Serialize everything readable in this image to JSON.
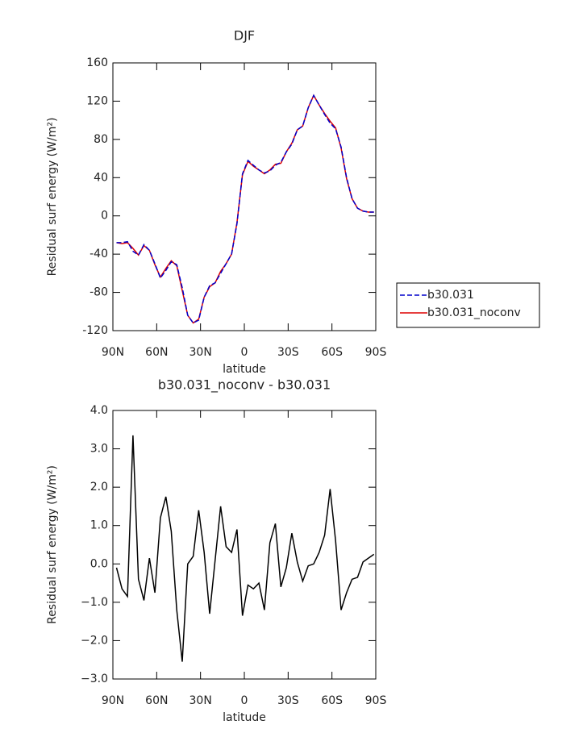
{
  "chart_data": [
    {
      "type": "line",
      "title": "DJF",
      "xlabel": "latitude",
      "ylabel": "Residual surf energy (W/m²)",
      "x": [
        87.5,
        83.75,
        80,
        76.25,
        72.5,
        68.75,
        65,
        61.25,
        57.5,
        53.75,
        50,
        46.25,
        42.5,
        38.75,
        35,
        31.25,
        27.5,
        23.75,
        20,
        16.25,
        12.5,
        8.75,
        5,
        1.25,
        -2.5,
        -6.25,
        -10,
        -13.75,
        -17.5,
        -21.25,
        -25,
        -28.75,
        -32.5,
        -36.25,
        -40,
        -43.75,
        -47.5,
        -51.25,
        -55,
        -58.75,
        -62.5,
        -66.25,
        -70,
        -73.75,
        -77.5,
        -81.25,
        -85,
        -88.75
      ],
      "series": [
        {
          "name": "b30.031",
          "color": "#0000cc",
          "dashed": true,
          "values": [
            -28,
            -28,
            -27,
            -37,
            -41,
            -30,
            -36,
            -50,
            -65,
            -57,
            -48,
            -51,
            -75,
            -104,
            -112,
            -109,
            -85,
            -73,
            -70,
            -60,
            -50,
            -40,
            -8,
            44,
            58,
            53,
            48,
            45,
            47,
            53,
            56,
            67,
            75,
            90,
            94,
            113,
            126,
            116,
            106,
            97,
            91,
            72,
            40,
            18,
            8,
            5,
            4,
            4
          ]
        },
        {
          "name": "b30.031_noconv",
          "color": "#dd0000",
          "dashed": false,
          "values": [
            -28,
            -29,
            -28,
            -34,
            -41,
            -31,
            -36,
            -51,
            -64,
            -55,
            -47,
            -52,
            -78,
            -104,
            -112,
            -108,
            -85,
            -74,
            -70,
            -58,
            -50,
            -40,
            -7,
            43,
            57,
            52,
            48,
            44,
            48,
            54,
            55,
            67,
            76,
            90,
            94,
            113,
            126,
            116,
            107,
            99,
            92,
            71,
            39,
            18,
            8,
            5,
            4,
            4
          ]
        }
      ],
      "xlim": [
        90,
        -90
      ],
      "xticks": [
        {
          "value": 90,
          "label": "90N"
        },
        {
          "value": 60,
          "label": "60N"
        },
        {
          "value": 30,
          "label": "30N"
        },
        0,
        {
          "value": -30,
          "label": "30S"
        },
        {
          "value": -60,
          "label": "60S"
        },
        {
          "value": -90,
          "label": "90S"
        }
      ],
      "ylim": [
        -120,
        160
      ],
      "yticks": [
        -120,
        -80,
        -40,
        0,
        40,
        80,
        120,
        160
      ],
      "legend": "right"
    },
    {
      "type": "line",
      "title": "b30.031_noconv - b30.031",
      "xlabel": "latitude",
      "ylabel": "Residual surf energy (W/m²)",
      "x": [
        87.5,
        83.75,
        80,
        76.25,
        72.5,
        68.75,
        65,
        61.25,
        57.5,
        53.75,
        50,
        46.25,
        42.5,
        38.75,
        35,
        31.25,
        27.5,
        23.75,
        20,
        16.25,
        12.5,
        8.75,
        5,
        1.25,
        -2.5,
        -6.25,
        -10,
        -13.75,
        -17.5,
        -21.25,
        -25,
        -28.75,
        -32.5,
        -36.25,
        -40,
        -43.75,
        -47.5,
        -51.25,
        -55,
        -58.75,
        -62.5,
        -66.25,
        -70,
        -73.75,
        -77.5,
        -81.25,
        -85,
        -88.75
      ],
      "color": "#000000",
      "values": [
        -0.1,
        -0.65,
        -0.85,
        3.35,
        -0.4,
        -0.95,
        0.15,
        -0.75,
        1.2,
        1.75,
        0.85,
        -1.2,
        -2.55,
        0,
        0.2,
        1.4,
        0.3,
        -1.3,
        0.1,
        1.5,
        0.45,
        0.3,
        0.9,
        -1.35,
        -0.55,
        -0.65,
        -0.5,
        -1.2,
        0.55,
        1.05,
        -0.6,
        -0.1,
        0.8,
        0.05,
        -0.45,
        -0.05,
        0,
        0.3,
        0.75,
        1.95,
        0.6,
        -1.2,
        -0.75,
        -0.4,
        -0.35,
        0.05,
        0.15,
        0.25
      ],
      "xlim": [
        90,
        -90
      ],
      "xticks": [
        {
          "value": 90,
          "label": "90N"
        },
        {
          "value": 60,
          "label": "60N"
        },
        {
          "value": 30,
          "label": "30N"
        },
        0,
        {
          "value": -30,
          "label": "30S"
        },
        {
          "value": -60,
          "label": "60S"
        },
        {
          "value": -90,
          "label": "90S"
        }
      ],
      "ylim": [
        -3,
        4
      ],
      "yticks": [
        {
          "value": -3,
          "label": "−3.0"
        },
        {
          "value": -2,
          "label": "−2.0"
        },
        {
          "value": -1,
          "label": "−1.0"
        },
        {
          "value": 0,
          "label": "0.0"
        },
        {
          "value": 1,
          "label": "1.0"
        },
        {
          "value": 2,
          "label": "2.0"
        },
        {
          "value": 3,
          "label": "3.0"
        },
        {
          "value": 4,
          "label": "4.0"
        }
      ]
    }
  ]
}
